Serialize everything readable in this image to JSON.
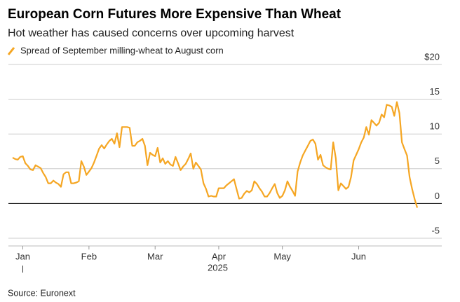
{
  "chart_data": {
    "type": "line",
    "title": "European Corn Futures More Expensive Than Wheat",
    "subtitle": "Hot weather has caused concerns over upcoming harvest",
    "source": "Source: Euronext",
    "year": "2025",
    "categories": [
      null,
      null,
      null,
      null,
      "Jan",
      null,
      null,
      null,
      null,
      null,
      null,
      null,
      null,
      null,
      null,
      null,
      null,
      null,
      null,
      null,
      null,
      null,
      null,
      null,
      null,
      null,
      null,
      null,
      null,
      null,
      "Feb",
      null,
      null,
      null,
      null,
      null,
      null,
      null,
      null,
      null,
      null,
      null,
      null,
      null,
      null,
      null,
      null,
      null,
      null,
      null,
      null,
      null,
      null,
      null,
      null,
      null,
      "Mar",
      null,
      null,
      null,
      null,
      null,
      null,
      null,
      null,
      null,
      null,
      null,
      null,
      null,
      null,
      null,
      null,
      null,
      null,
      null,
      null,
      null,
      null,
      null,
      null,
      "Apr",
      null,
      null,
      null,
      null,
      null,
      null,
      null,
      null,
      null,
      null,
      null,
      null,
      null,
      null,
      null,
      null,
      null,
      null,
      null,
      null,
      null,
      null,
      null,
      null,
      "May",
      null,
      null,
      null,
      null,
      null,
      null,
      null,
      null,
      null,
      null,
      null,
      null,
      null,
      null,
      null,
      null,
      null,
      null,
      null,
      null,
      null,
      null,
      null,
      null,
      null,
      null,
      null,
      null,
      null,
      "Jun",
      null,
      null,
      null,
      null,
      null,
      null,
      null,
      null,
      null,
      null,
      null,
      null,
      null,
      null,
      null,
      null,
      null,
      null,
      null,
      null,
      null,
      null,
      null
    ],
    "series": [
      {
        "name": "Spread of September milling-wheat to August corn",
        "color": "#f5a623",
        "values": [
          6.6,
          6.4,
          6.3,
          6.7,
          6.8,
          5.8,
          5.4,
          4.9,
          4.8,
          5.5,
          5.3,
          5.1,
          4.4,
          3.8,
          2.9,
          2.9,
          3.3,
          3.0,
          2.8,
          2.4,
          4.2,
          4.5,
          4.5,
          2.9,
          2.9,
          3.0,
          3.2,
          6.1,
          5.3,
          4.1,
          4.6,
          5.1,
          5.9,
          6.9,
          7.9,
          8.4,
          7.9,
          8.5,
          9.0,
          9.3,
          8.6,
          10.1,
          8.1,
          11.0,
          11.0,
          11.0,
          10.9,
          8.3,
          8.3,
          8.8,
          9.0,
          9.3,
          8.3,
          5.5,
          7.3,
          7.0,
          6.8,
          8.0,
          5.9,
          6.5,
          5.7,
          6.1,
          5.6,
          5.4,
          6.7,
          5.8,
          4.8,
          5.3,
          5.7,
          6.4,
          7.2,
          5.0,
          5.9,
          5.4,
          4.9,
          2.9,
          2.1,
          1.0,
          1.1,
          1.0,
          1.0,
          2.2,
          2.2,
          2.2,
          2.6,
          2.9,
          3.2,
          3.5,
          2.1,
          0.7,
          0.8,
          1.4,
          1.8,
          1.6,
          1.9,
          3.2,
          2.8,
          2.2,
          1.7,
          1.0,
          1.0,
          1.5,
          2.2,
          2.8,
          1.5,
          0.8,
          1.1,
          1.9,
          3.2,
          2.4,
          1.8,
          1.1,
          4.6,
          5.9,
          6.9,
          7.6,
          8.3,
          9.0,
          9.2,
          8.6,
          6.3,
          7.0,
          5.5,
          5.2,
          5.0,
          4.9,
          8.8,
          6.5,
          1.9,
          2.9,
          2.5,
          2.1,
          2.4,
          3.8,
          6.2,
          7.0,
          7.8,
          8.8,
          9.5,
          11.0,
          9.9,
          12.0,
          11.6,
          11.2,
          11.6,
          12.8,
          12.4,
          14.2,
          14.1,
          13.9,
          12.6,
          14.6,
          13.0,
          8.8,
          7.8,
          6.9,
          3.8,
          2.1,
          0.6,
          -0.6
        ]
      }
    ],
    "ylim": [
      -5,
      20
    ],
    "yticks": [
      -5,
      0,
      5,
      10,
      15,
      {
        "value": 20,
        "label": "$20"
      }
    ],
    "grid": true
  }
}
